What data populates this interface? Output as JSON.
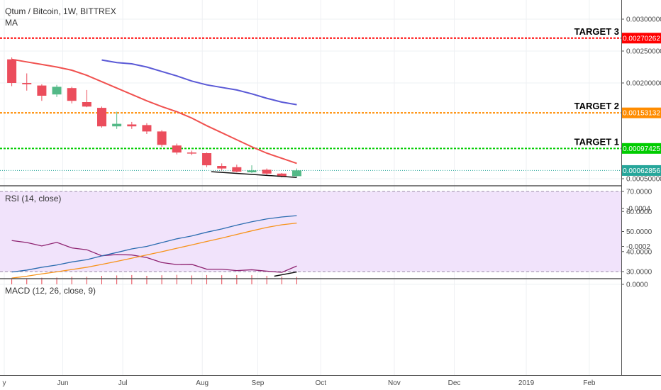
{
  "header": {
    "symbol": "Qtum / Bitcoin, 1W, BITTREX",
    "indicator": "MA"
  },
  "colors": {
    "up": "#53b987",
    "down": "#eb4d5c",
    "ma_fast": "#f0514f",
    "ma_slow": "#5a59d6",
    "rsi": "#8e2270",
    "rsi_band": "#f1e3fb",
    "macd": "#2b6cb0",
    "signal": "#f7931a",
    "hist": "#e5434f",
    "target3": "#ff0000",
    "target2": "#ff8c00",
    "target1": "#00cc00",
    "price": "#26a69a"
  },
  "chart_data": [
    {
      "type": "candlestick",
      "name": "price",
      "ylim": [
        0.0004,
        0.0033
      ],
      "yticks": [
        {
          "v": 0.003,
          "label": "0.00300000"
        },
        {
          "v": 0.0025,
          "label": "0.00250000"
        },
        {
          "v": 0.002,
          "label": "0.00200000"
        },
        {
          "v": 0.0005,
          "label": "0.00050000"
        }
      ],
      "candles": [
        {
          "o": 0.00237,
          "h": 0.0024,
          "l": 0.00195,
          "c": 0.002
        },
        {
          "o": 0.002,
          "h": 0.00215,
          "l": 0.00188,
          "c": 0.00198
        },
        {
          "o": 0.00196,
          "h": 0.00198,
          "l": 0.00172,
          "c": 0.0018
        },
        {
          "o": 0.00182,
          "h": 0.00197,
          "l": 0.00178,
          "c": 0.00194
        },
        {
          "o": 0.00192,
          "h": 0.00194,
          "l": 0.00168,
          "c": 0.00172
        },
        {
          "o": 0.0017,
          "h": 0.00189,
          "l": 0.00162,
          "c": 0.00163
        },
        {
          "o": 0.00161,
          "h": 0.00163,
          "l": 0.0013,
          "c": 0.00132
        },
        {
          "o": 0.00132,
          "h": 0.00155,
          "l": 0.00128,
          "c": 0.00136
        },
        {
          "o": 0.00135,
          "h": 0.00139,
          "l": 0.00128,
          "c": 0.00132
        },
        {
          "o": 0.00134,
          "h": 0.00137,
          "l": 0.0012,
          "c": 0.00124
        },
        {
          "o": 0.00124,
          "h": 0.00126,
          "l": 0.001,
          "c": 0.00103
        },
        {
          "o": 0.00102,
          "h": 0.00105,
          "l": 0.00088,
          "c": 0.00091
        },
        {
          "o": 0.00091,
          "h": 0.00094,
          "l": 0.00087,
          "c": 0.0009
        },
        {
          "o": 0.0009,
          "h": 0.00091,
          "l": 0.00068,
          "c": 0.00071
        },
        {
          "o": 0.0007,
          "h": 0.00074,
          "l": 0.00063,
          "c": 0.00066
        },
        {
          "o": 0.00068,
          "h": 0.00072,
          "l": 0.0006,
          "c": 0.00061
        },
        {
          "o": 0.0006,
          "h": 0.00071,
          "l": 0.00059,
          "c": 0.00063
        },
        {
          "o": 0.00064,
          "h": 0.00066,
          "l": 0.00056,
          "c": 0.00058
        },
        {
          "o": 0.00058,
          "h": 0.00059,
          "l": 0.00052,
          "c": 0.00053
        },
        {
          "o": 0.00054,
          "h": 0.00066,
          "l": 0.00053,
          "c": 0.00063
        }
      ],
      "ma_fast": [
        0.00237,
        0.00233,
        0.00229,
        0.00225,
        0.0022,
        0.00212,
        0.00202,
        0.00192,
        0.00182,
        0.00172,
        0.00163,
        0.00155,
        0.00145,
        0.00133,
        0.00122,
        0.00111,
        0.001,
        0.0009,
        0.00082,
        0.00074
      ],
      "ma_slow_start": 6,
      "ma_slow": [
        0.00236,
        0.00232,
        0.0023,
        0.00225,
        0.00218,
        0.00211,
        0.00203,
        0.00197,
        0.00193,
        0.00189,
        0.00183,
        0.00176,
        0.0017,
        0.00166
      ],
      "trendline": [
        {
          "i": 13.3,
          "v": 0.00061
        },
        {
          "i": 19,
          "v": 0.00052
        }
      ],
      "levels": [
        {
          "name": "TARGET 3",
          "value": 0.00270262,
          "label": "0.00270262",
          "color": "#ff0000"
        },
        {
          "name": "TARGET 2",
          "value": 0.00153132,
          "label": "0.00153132",
          "color": "#ff8c00"
        },
        {
          "name": "TARGET 1",
          "value": 0.00097425,
          "label": "0.00097425",
          "color": "#00cc00"
        }
      ],
      "last_price": {
        "value": 0.00062856,
        "label": "0.00062856"
      }
    },
    {
      "type": "line",
      "name": "RSI (14, close)",
      "ylim": [
        27.5,
        70.5
      ],
      "yticks": [
        {
          "v": 70,
          "label": "70.0000"
        },
        {
          "v": 60,
          "label": "60.0000"
        },
        {
          "v": 50,
          "label": "50.0000"
        },
        {
          "v": 40,
          "label": "40.0000"
        },
        {
          "v": 30,
          "label": "30.0000"
        }
      ],
      "band": [
        30,
        70
      ],
      "values": [
        45.5,
        44.5,
        42.8,
        44.6,
        41.8,
        40.9,
        37.9,
        38.5,
        38.3,
        37.0,
        34.5,
        33.5,
        33.6,
        31.2,
        31.2,
        30.5,
        30.9,
        30.2,
        29.6,
        32.8
      ],
      "trendline": [
        {
          "i": 17.5,
          "v": 27.7
        },
        {
          "i": 19,
          "v": 29.8
        }
      ]
    },
    {
      "type": "line",
      "name": "MACD (12, 26, close, 9)",
      "ylim": [
        -0.000455,
        1.5e-05
      ],
      "yticks": [
        {
          "v": 0,
          "label": "0.0000"
        },
        {
          "v": -0.0002,
          "label": "-0.0002"
        },
        {
          "v": -0.0004,
          "label": "-0.0004"
        }
      ],
      "macd": [
        -6.5e-05,
        -7.5e-05,
        -9e-05,
        -0.000102,
        -0.000118,
        -0.00013,
        -0.00015,
        -0.000168,
        -0.000187,
        -0.0002,
        -0.00022,
        -0.00024,
        -0.000255,
        -0.000275,
        -0.000292,
        -0.000312,
        -0.00033,
        -0.000345,
        -0.000355,
        -0.000362
      ],
      "signal": [
        -3.3e-05,
        -4.3e-05,
        -5.5e-05,
        -6.6e-05,
        -7.8e-05,
        -9e-05,
        -0.000105,
        -0.000121,
        -0.000138,
        -0.000155,
        -0.000172,
        -0.00019,
        -0.000208,
        -0.000226,
        -0.000244,
        -0.000263,
        -0.000282,
        -0.0003,
        -0.000314,
        -0.000323
      ],
      "hist": [
        -3.2e-05,
        -3.2e-05,
        -3.5e-05,
        -3.6e-05,
        -4e-05,
        -4e-05,
        -4.5e-05,
        -4.7e-05,
        -4.9e-05,
        -4.5e-05,
        -4.8e-05,
        -5e-05,
        -4.7e-05,
        -4.9e-05,
        -4.8e-05,
        -4.9e-05,
        -4.8e-05,
        -4.5e-05,
        -4.1e-05,
        -3.9e-05
      ]
    }
  ],
  "xaxis": {
    "labels": [
      "y",
      "Jun",
      "Jul",
      "Aug",
      "Sep",
      "Oct",
      "Nov",
      "Dec",
      "2019",
      "Feb"
    ],
    "positions": [
      -0.5,
      3.4,
      7.4,
      12.7,
      16.4,
      20.6,
      25.5,
      29.5,
      34.3,
      38.5
    ]
  }
}
